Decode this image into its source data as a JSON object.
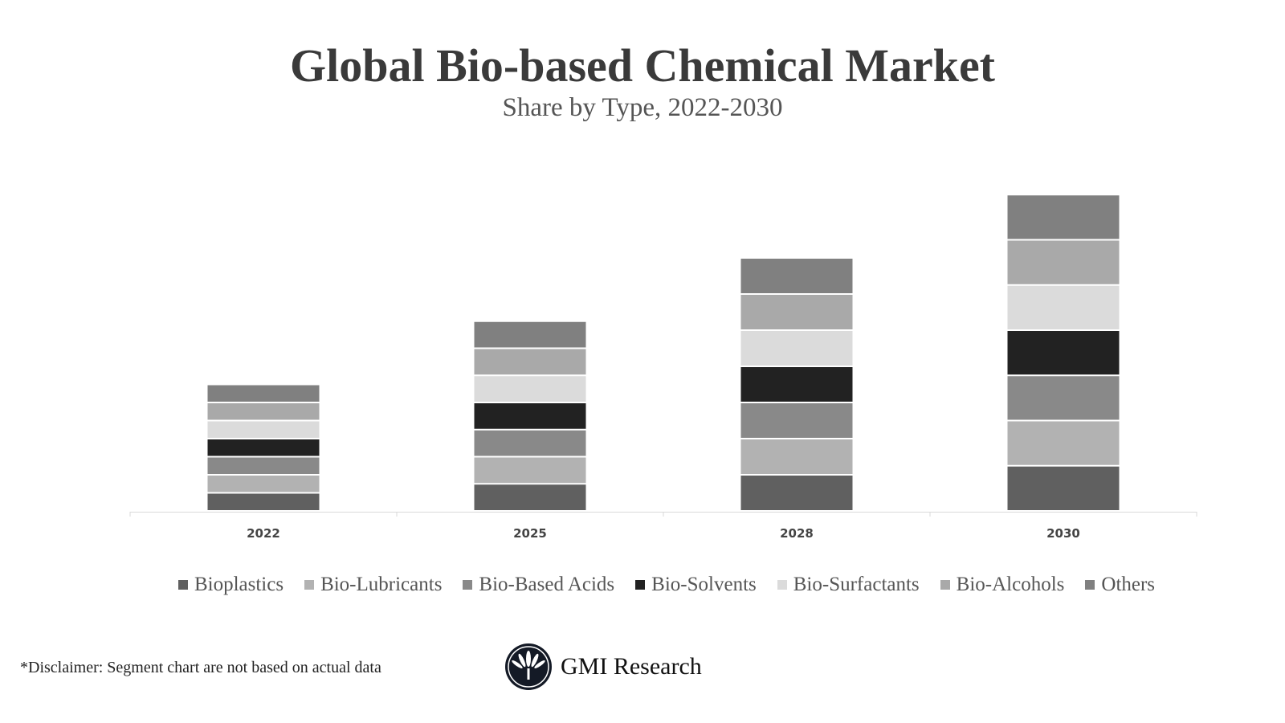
{
  "chart_data": {
    "type": "bar",
    "stacked": true,
    "title": "Global Bio-based Chemical Market",
    "subtitle": "Share by Type, 2022-2030",
    "categories": [
      "2022",
      "2025",
      "2028",
      "2030"
    ],
    "series": [
      {
        "name": "Bioplastics",
        "color": "#606060",
        "values": [
          1,
          1.5,
          2,
          2.5
        ]
      },
      {
        "name": "Bio-Lubricants",
        "color": "#b2b2b2",
        "values": [
          1,
          1.5,
          2,
          2.5
        ]
      },
      {
        "name": "Bio-Based Acids",
        "color": "#898989",
        "values": [
          1,
          1.5,
          2,
          2.5
        ]
      },
      {
        "name": "Bio-Solvents",
        "color": "#222222",
        "values": [
          1,
          1.5,
          2,
          2.5
        ]
      },
      {
        "name": "Bio-Surfactants",
        "color": "#dbdbdb",
        "values": [
          1,
          1.5,
          2,
          2.5
        ]
      },
      {
        "name": "Bio-Alcohols",
        "color": "#a9a9a9",
        "values": [
          1,
          1.5,
          2,
          2.5
        ]
      },
      {
        "name": "Others",
        "color": "#808080",
        "values": [
          1,
          1.5,
          2,
          2.5
        ]
      }
    ],
    "y_axis_visible": false,
    "grid": false,
    "legend_position": "bottom"
  },
  "footer": {
    "disclaimer": "*Disclaimer:  Segment chart are not based on actual data",
    "logo_text": "GMI Research"
  }
}
